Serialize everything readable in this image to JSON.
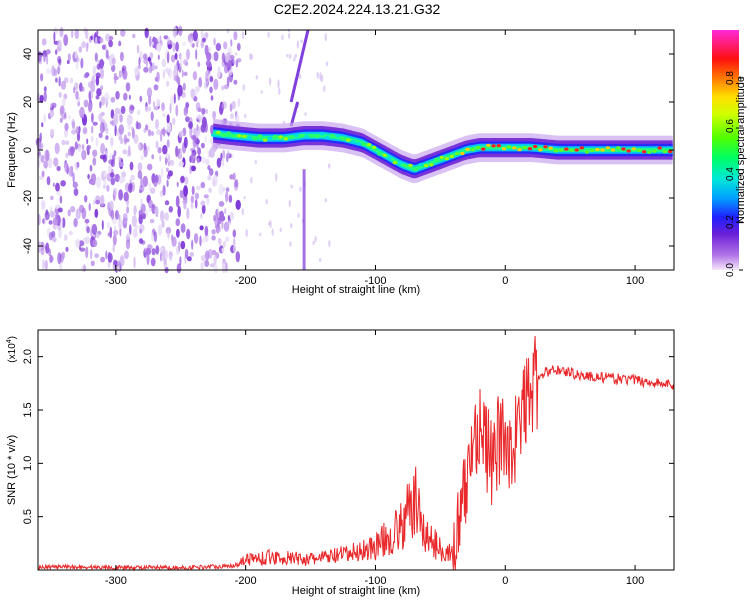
{
  "title": "C2E2.2024.224.13.21.G32",
  "chart_data": [
    {
      "type": "heatmap",
      "xlabel": "Height of straight line (km)",
      "ylabel": "Frequency (Hz)",
      "xlim": [
        -360,
        130
      ],
      "ylim": [
        -50,
        50
      ],
      "x_ticks": [
        -300,
        -200,
        -100,
        0,
        100
      ],
      "y_ticks": [
        -40,
        -20,
        0,
        20,
        40
      ],
      "colorbar": {
        "label": "Normalized spectral amplitude",
        "range": [
          0,
          1
        ],
        "ticks": [
          0.0,
          0.2,
          0.4,
          0.6,
          0.8
        ]
      },
      "ridge": {
        "x": [
          -225,
          -210,
          -190,
          -170,
          -155,
          -140,
          -125,
          -110,
          -100,
          -90,
          -80,
          -70,
          -60,
          -50,
          -40,
          -30,
          -20,
          -10,
          0,
          20,
          40,
          60,
          80,
          100,
          130
        ],
        "y": [
          7,
          6,
          5,
          5,
          6,
          6,
          5,
          3,
          0,
          -3,
          -6,
          -8,
          -6,
          -4,
          -2,
          0,
          1,
          1,
          1,
          1,
          0,
          0,
          0,
          0,
          0
        ]
      },
      "vertical_streak": {
        "x": [
          -165,
          -150
        ],
        "y": [
          -50,
          50
        ]
      },
      "noise_region": {
        "x": [
          -360,
          -215
        ]
      }
    },
    {
      "type": "line",
      "xlabel": "Height of straight line (km)",
      "ylabel": "SNR (10 * v/v)",
      "y_multiplier": "(x10",
      "y_multiplier_exp": "4",
      "y_multiplier_close": ")",
      "xlim": [
        -360,
        130
      ],
      "ylim": [
        0,
        2.25
      ],
      "x_ticks": [
        -300,
        -200,
        -100,
        0,
        100
      ],
      "y_ticks": [
        0.5,
        1.0,
        1.5,
        2.0
      ],
      "envelope": {
        "x": [
          -360,
          -250,
          -210,
          -200,
          -180,
          -150,
          -120,
          -100,
          -80,
          -70,
          -60,
          -50,
          -40,
          -35,
          -30,
          -25,
          -20,
          -15,
          -10,
          -5,
          0,
          5,
          10,
          15,
          20,
          30,
          40,
          60,
          80,
          100,
          130
        ],
        "y": [
          0.03,
          0.02,
          0.04,
          0.1,
          0.12,
          0.1,
          0.15,
          0.22,
          0.4,
          0.65,
          0.3,
          0.2,
          0.15,
          0.4,
          0.8,
          1.2,
          1.4,
          1.15,
          1.0,
          1.2,
          1.25,
          1.15,
          1.3,
          1.55,
          1.7,
          1.85,
          1.88,
          1.82,
          1.8,
          1.78,
          1.73
        ]
      },
      "color": "#e8282a"
    }
  ]
}
